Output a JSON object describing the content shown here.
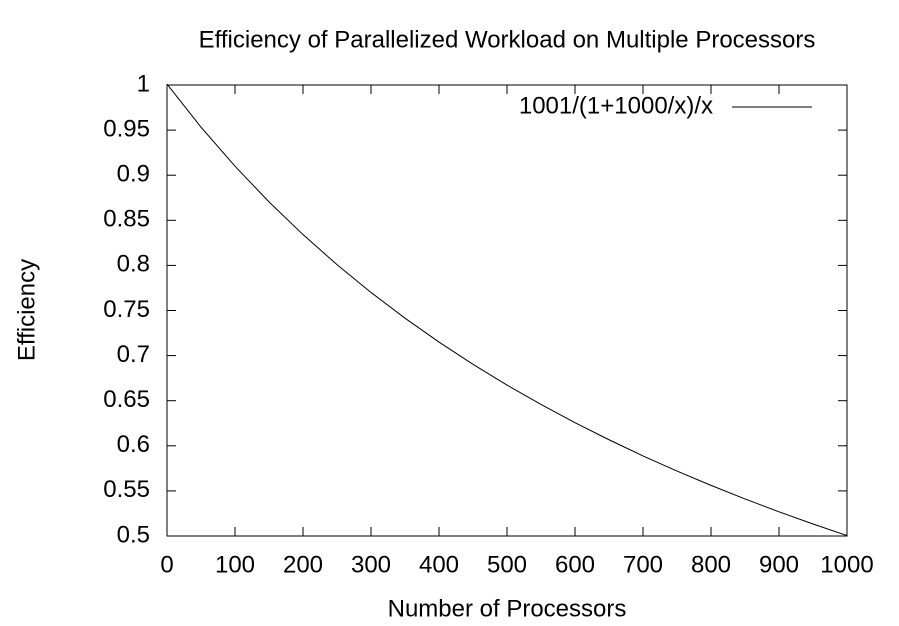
{
  "chart_data": {
    "type": "line",
    "title": "Efficiency of Parallelized Workload on Multiple Processors",
    "x_label": "Number of Processors",
    "y_label": "Efficiency",
    "x": [
      0,
      50,
      100,
      150,
      200,
      250,
      300,
      350,
      400,
      450,
      500,
      550,
      600,
      650,
      700,
      750,
      800,
      850,
      900,
      950,
      1000
    ],
    "series": [
      {
        "name": "1001/(1+1000/x)/x",
        "color": "#000000",
        "values": [
          1.001,
          0.9533,
          0.91,
          0.8704,
          0.8342,
          0.8008,
          0.77,
          0.7415,
          0.715,
          0.6903,
          0.6673,
          0.6458,
          0.6256,
          0.6067,
          0.5888,
          0.572,
          0.5561,
          0.5411,
          0.5268,
          0.5133,
          0.5005
        ]
      }
    ],
    "xlim": [
      0,
      1000
    ],
    "xticks": [
      0,
      100,
      200,
      300,
      400,
      500,
      600,
      700,
      800,
      900,
      1000
    ],
    "ylim": [
      0.5,
      1
    ],
    "yticks": [
      0.5,
      0.55,
      0.6,
      0.65,
      0.7,
      0.75,
      0.8,
      0.85,
      0.9,
      0.95,
      1
    ],
    "grid": false,
    "legend": "top-right"
  }
}
